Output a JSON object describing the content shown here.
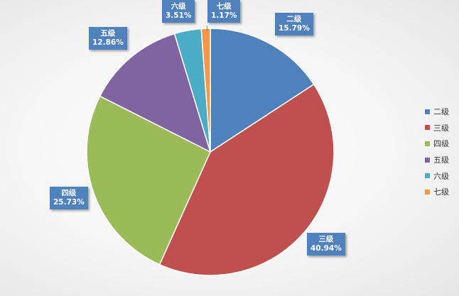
{
  "chart_data": {
    "type": "pie",
    "categories": [
      "二级",
      "三级",
      "四级",
      "五级",
      "六级",
      "七级"
    ],
    "values": [
      15.79,
      40.94,
      25.73,
      12.86,
      3.51,
      1.17
    ],
    "value_labels": [
      "15.79%",
      "40.94%",
      "25.73%",
      "12.86%",
      "3.51%",
      "1.17%"
    ],
    "colors": [
      "#4f81bd",
      "#c0504d",
      "#9bbb59",
      "#8064a2",
      "#4bacc6",
      "#f79646"
    ],
    "legend_position": "right",
    "label_style": "callout"
  }
}
